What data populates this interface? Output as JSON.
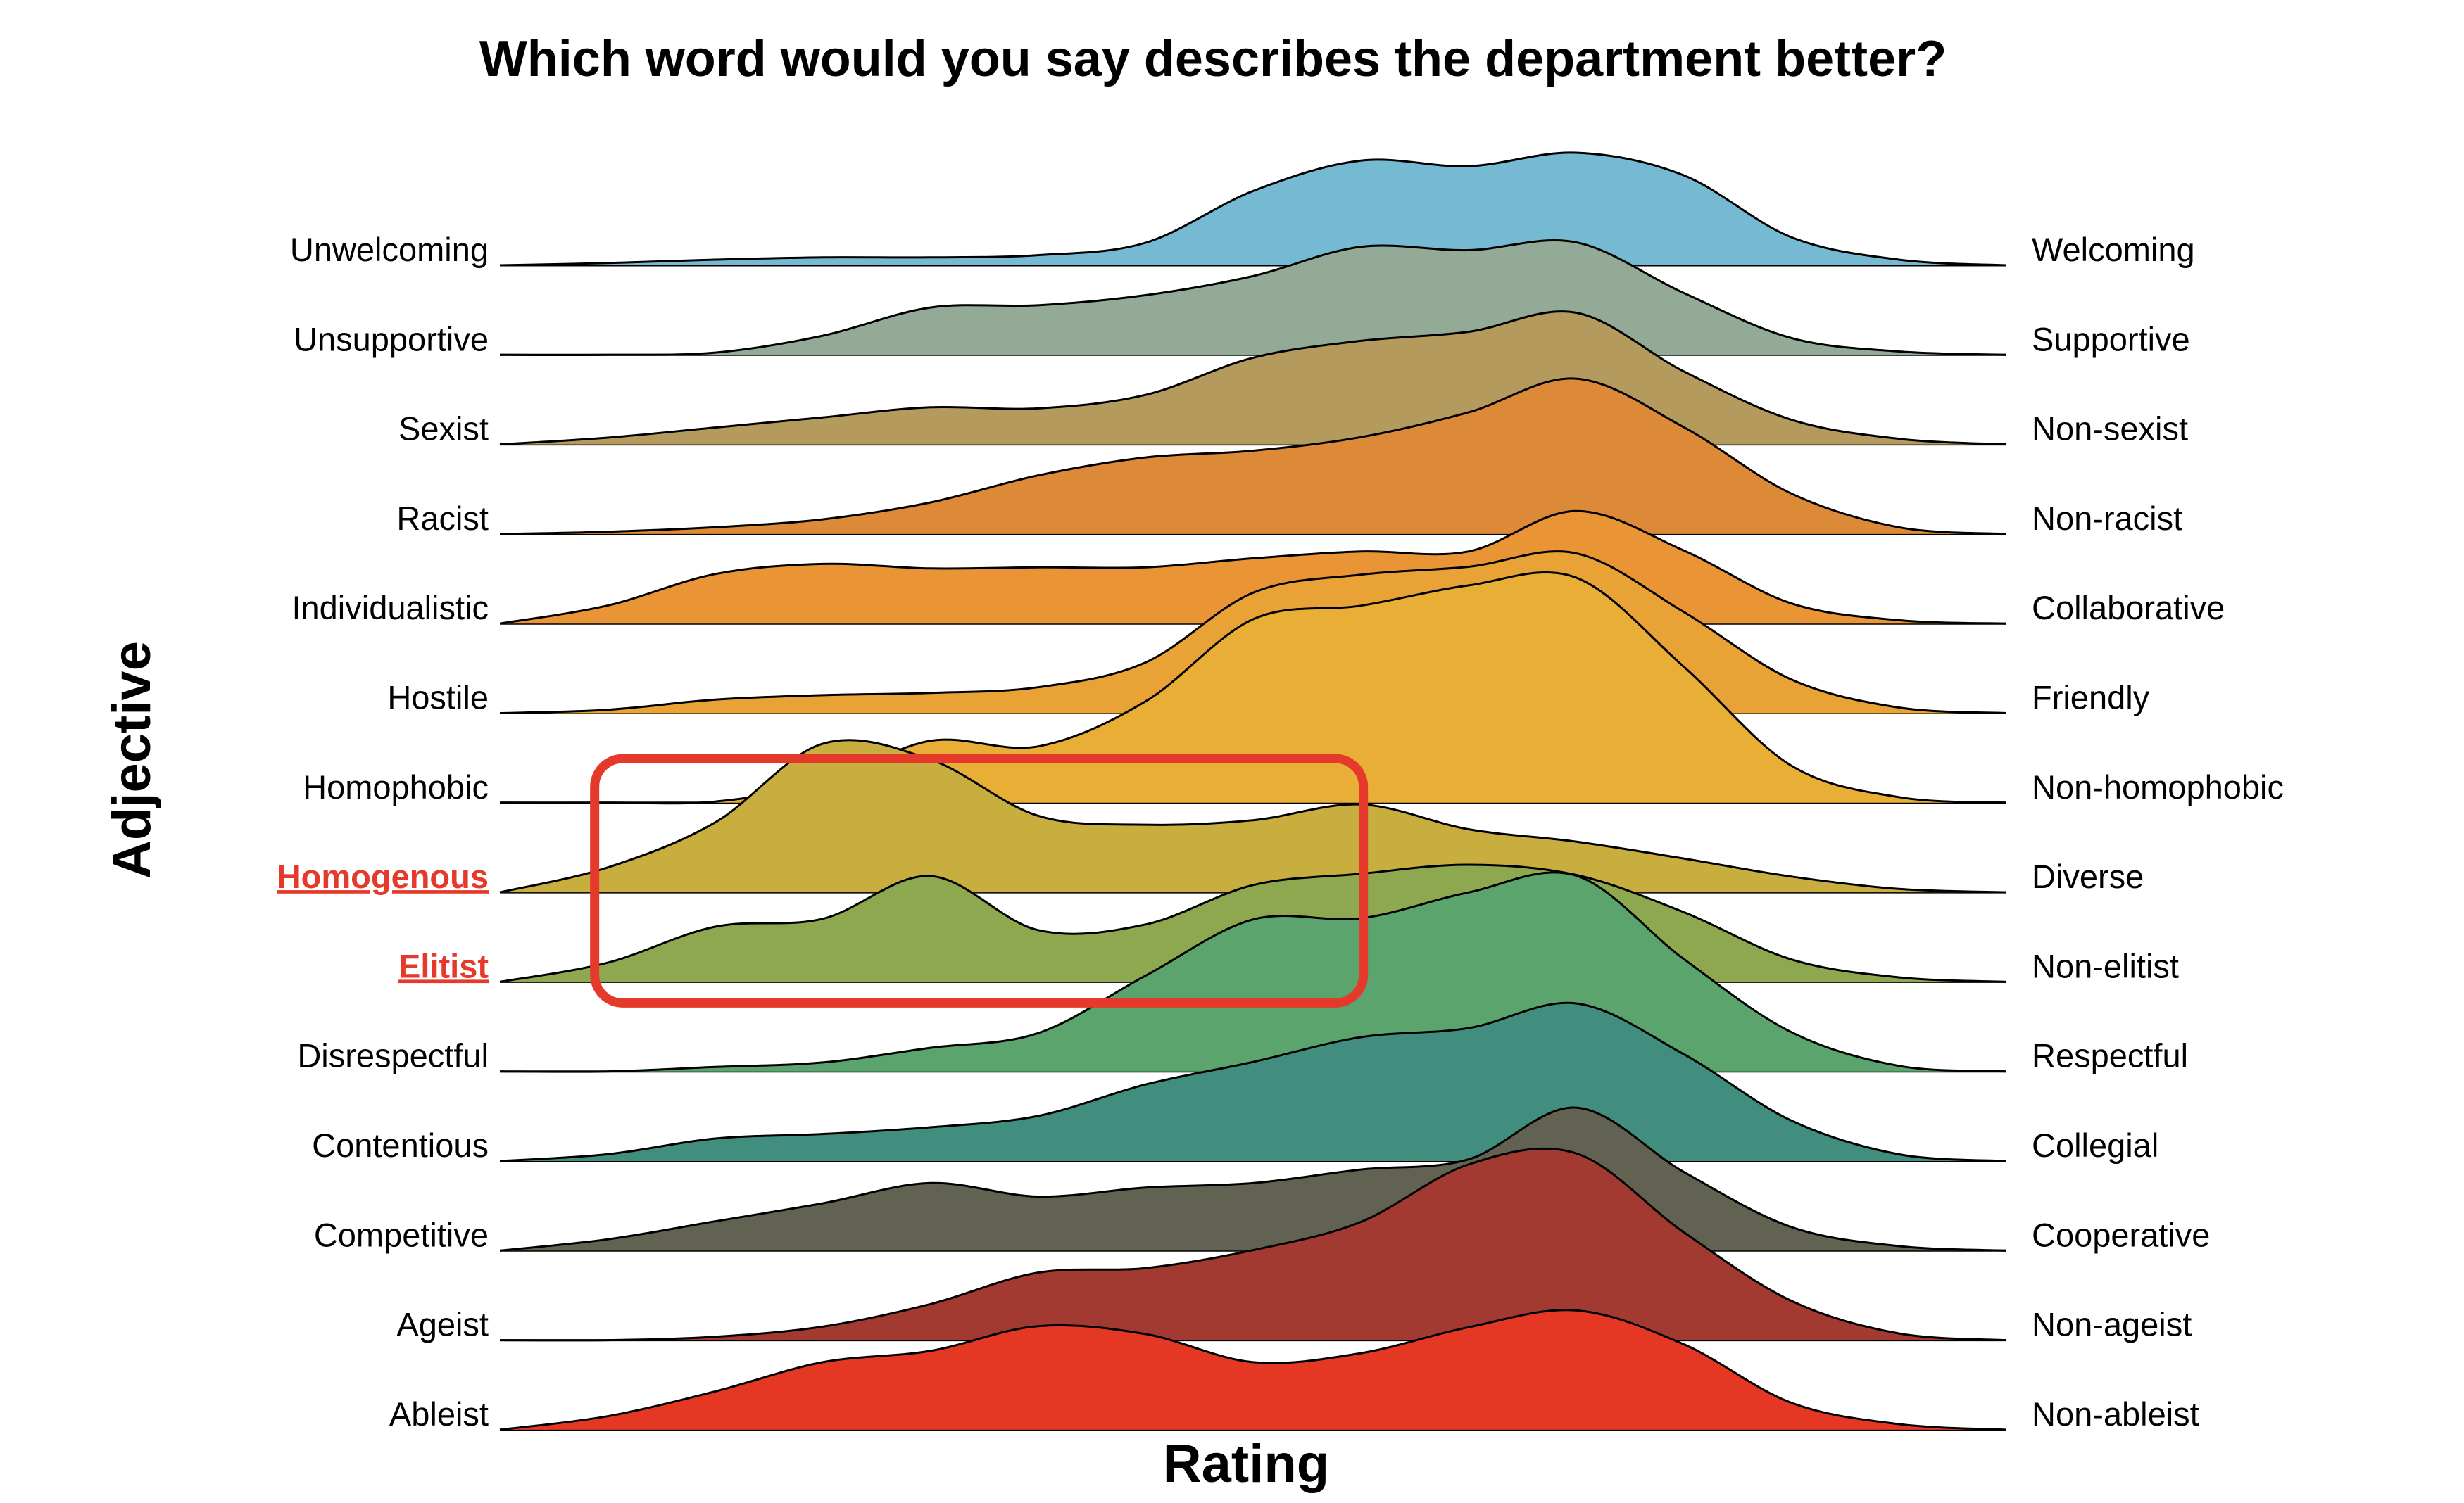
{
  "chart_data": {
    "type": "ridgeline",
    "title": "Which word would you say describes the department better?",
    "xlabel": "Rating",
    "ylabel": "Adjective",
    "xlim": [
      1,
      7
    ],
    "grid": false,
    "legend": "none",
    "rows": [
      {
        "left": "Unwelcoming",
        "right": "Welcoming",
        "color": "#76B9D2",
        "highlight": false,
        "density": [
          0,
          0.02,
          0.05,
          0.07,
          0.07,
          0.09,
          0.2,
          0.66,
          0.93,
          0.88,
          1.0,
          0.8,
          0.25,
          0.05,
          0
        ]
      },
      {
        "left": "Unsupportive",
        "right": "Supportive",
        "color": "#92AA96",
        "highlight": false,
        "density": [
          0,
          0,
          0.02,
          0.17,
          0.42,
          0.44,
          0.53,
          0.7,
          0.96,
          0.93,
          1.0,
          0.55,
          0.15,
          0.03,
          0
        ]
      },
      {
        "left": "Sexist",
        "right": "Non-sexist",
        "color": "#B59A5E",
        "highlight": false,
        "density": [
          0,
          0.06,
          0.15,
          0.24,
          0.33,
          0.32,
          0.44,
          0.77,
          0.92,
          1.0,
          1.17,
          0.65,
          0.22,
          0.05,
          0
        ]
      },
      {
        "left": "Racist",
        "right": "Non-racist",
        "color": "#DC8A37",
        "highlight": false,
        "density": [
          0,
          0.02,
          0.06,
          0.13,
          0.28,
          0.52,
          0.68,
          0.74,
          0.86,
          1.08,
          1.38,
          0.95,
          0.36,
          0.06,
          0
        ]
      },
      {
        "left": "Individualistic",
        "right": "Collaborative",
        "color": "#E99535",
        "highlight": false,
        "density": [
          0,
          0.16,
          0.44,
          0.53,
          0.49,
          0.5,
          0.5,
          0.58,
          0.64,
          0.64,
          1.0,
          0.65,
          0.18,
          0.03,
          0
        ]
      },
      {
        "left": "Hostile",
        "right": "Friendly",
        "color": "#E9A236",
        "highlight": false,
        "density": [
          0,
          0.03,
          0.12,
          0.16,
          0.18,
          0.23,
          0.45,
          1.07,
          1.23,
          1.3,
          1.42,
          0.9,
          0.3,
          0.05,
          0
        ]
      },
      {
        "left": "Homophobic",
        "right": "Non-homophobic",
        "color": "#E9AE36",
        "highlight": false,
        "density": [
          0,
          0,
          0.01,
          0.18,
          0.55,
          0.5,
          0.9,
          1.63,
          1.75,
          1.93,
          2.0,
          1.21,
          0.33,
          0.05,
          0
        ]
      },
      {
        "left": "Homogenous",
        "right": "Diverse",
        "color": "#C7AE3E",
        "highlight": true,
        "density": [
          0,
          0.22,
          0.62,
          1.32,
          1.18,
          0.68,
          0.6,
          0.64,
          0.78,
          0.56,
          0.45,
          0.3,
          0.14,
          0.03,
          0
        ]
      },
      {
        "left": "Elitist",
        "right": "Non-elitist",
        "color": "#8DA84F",
        "highlight": false,
        "density": [
          0,
          0.17,
          0.49,
          0.56,
          0.94,
          0.46,
          0.51,
          0.86,
          0.96,
          1.04,
          0.95,
          0.62,
          0.2,
          0.04,
          0
        ]
      },
      {
        "left": "Disrespectful",
        "right": "Respectful",
        "color": "#5BA46E",
        "highlight": false,
        "density": [
          0,
          0,
          0.04,
          0.08,
          0.21,
          0.34,
          0.85,
          1.35,
          1.36,
          1.59,
          1.74,
          1.0,
          0.35,
          0.05,
          0
        ]
      },
      {
        "left": "Contentious",
        "right": "Collegial",
        "color": "#418E7F",
        "highlight": false,
        "density": [
          0,
          0.06,
          0.2,
          0.24,
          0.3,
          0.4,
          0.68,
          0.88,
          1.1,
          1.18,
          1.4,
          0.95,
          0.36,
          0.06,
          0
        ]
      },
      {
        "left": "Competitive",
        "right": "Cooperative",
        "color": "#626252",
        "highlight": false,
        "density": [
          0,
          0.1,
          0.26,
          0.42,
          0.6,
          0.48,
          0.56,
          0.6,
          0.72,
          0.81,
          1.27,
          0.7,
          0.21,
          0.04,
          0
        ]
      },
      {
        "left": "Ageist",
        "right": "Non-ageist",
        "color": "#A23A32",
        "highlight": false,
        "density": [
          0,
          0,
          0.03,
          0.12,
          0.32,
          0.6,
          0.64,
          0.8,
          1.05,
          1.56,
          1.66,
          0.96,
          0.35,
          0.06,
          0
        ]
      },
      {
        "left": "Ableist",
        "right": "Non-ableist",
        "color": "#E53824",
        "highlight": false,
        "density": [
          0,
          0.12,
          0.34,
          0.6,
          0.7,
          0.92,
          0.85,
          0.6,
          0.68,
          0.91,
          1.06,
          0.76,
          0.24,
          0.05,
          0
        ]
      }
    ],
    "highlight_box": {
      "rows": [
        "Homogenous",
        "Elitist"
      ],
      "x_range": [
        1.4,
        4.4
      ]
    }
  }
}
